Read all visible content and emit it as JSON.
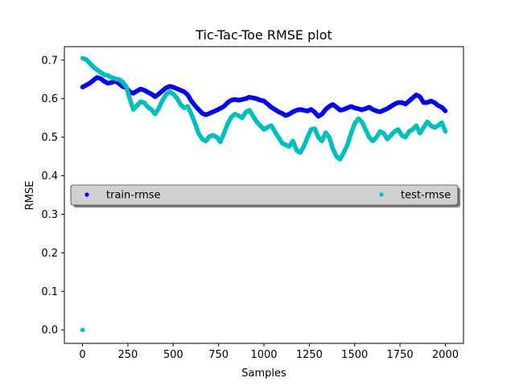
{
  "chart_data": {
    "type": "scatter",
    "title": "Tic-Tac-Toe RMSE plot",
    "xlabel": "Samples",
    "ylabel": "RMSE",
    "xlim": [
      -100,
      2100
    ],
    "ylim": [
      -0.035,
      0.735
    ],
    "xticks": [
      {
        "value": 0,
        "label": "0"
      },
      {
        "value": 250,
        "label": "250"
      },
      {
        "value": 500,
        "label": "500"
      },
      {
        "value": 750,
        "label": "750"
      },
      {
        "value": 1000,
        "label": "1000"
      },
      {
        "value": 1250,
        "label": "1250"
      },
      {
        "value": 1500,
        "label": "1500"
      },
      {
        "value": 1750,
        "label": "1750"
      },
      {
        "value": 2000,
        "label": "2000"
      }
    ],
    "yticks": [
      {
        "value": 0.0,
        "label": "0.0"
      },
      {
        "value": 0.1,
        "label": "0.1"
      },
      {
        "value": 0.2,
        "label": "0.2"
      },
      {
        "value": 0.3,
        "label": "0.3"
      },
      {
        "value": 0.4,
        "label": "0.4"
      },
      {
        "value": 0.5,
        "label": "0.5"
      },
      {
        "value": 0.6,
        "label": "0.6"
      },
      {
        "value": 0.7,
        "label": "0.7"
      }
    ],
    "grid": false,
    "legend": {
      "placement": "center-left",
      "style": "shadowed box",
      "columns": 2
    },
    "series": [
      {
        "name": "train-rmse",
        "color": "#0000ff",
        "x": [
          0,
          20,
          40,
          60,
          80,
          100,
          120,
          140,
          160,
          180,
          200,
          220,
          240,
          260,
          280,
          300,
          320,
          340,
          360,
          380,
          400,
          420,
          440,
          460,
          480,
          500,
          520,
          540,
          560,
          580,
          600,
          620,
          640,
          660,
          680,
          700,
          720,
          740,
          760,
          780,
          800,
          820,
          840,
          860,
          880,
          900,
          920,
          940,
          960,
          980,
          1000,
          1020,
          1040,
          1060,
          1080,
          1100,
          1120,
          1140,
          1160,
          1180,
          1200,
          1220,
          1240,
          1260,
          1280,
          1300,
          1320,
          1340,
          1360,
          1380,
          1400,
          1420,
          1440,
          1460,
          1480,
          1500,
          1520,
          1540,
          1560,
          1580,
          1600,
          1620,
          1640,
          1660,
          1680,
          1700,
          1720,
          1740,
          1760,
          1780,
          1800,
          1820,
          1840,
          1860,
          1880,
          1900,
          1920,
          1940,
          1960,
          1980,
          2000
        ],
        "y": [
          0.63,
          0.635,
          0.64,
          0.648,
          0.655,
          0.652,
          0.645,
          0.64,
          0.642,
          0.646,
          0.64,
          0.632,
          0.628,
          0.618,
          0.614,
          0.62,
          0.625,
          0.622,
          0.617,
          0.612,
          0.605,
          0.612,
          0.62,
          0.628,
          0.632,
          0.63,
          0.626,
          0.622,
          0.618,
          0.61,
          0.594,
          0.582,
          0.572,
          0.562,
          0.558,
          0.562,
          0.566,
          0.57,
          0.575,
          0.58,
          0.59,
          0.596,
          0.598,
          0.596,
          0.598,
          0.6,
          0.604,
          0.602,
          0.6,
          0.596,
          0.594,
          0.586,
          0.578,
          0.572,
          0.566,
          0.562,
          0.556,
          0.56,
          0.566,
          0.57,
          0.572,
          0.57,
          0.568,
          0.572,
          0.565,
          0.554,
          0.56,
          0.572,
          0.58,
          0.585,
          0.578,
          0.57,
          0.572,
          0.576,
          0.58,
          0.576,
          0.574,
          0.571,
          0.574,
          0.578,
          0.572,
          0.568,
          0.566,
          0.57,
          0.574,
          0.58,
          0.586,
          0.59,
          0.59,
          0.586,
          0.594,
          0.602,
          0.61,
          0.605,
          0.59,
          0.59,
          0.594,
          0.59,
          0.582,
          0.578,
          0.568
        ]
      },
      {
        "name": "test-rmse",
        "color": "#00bfbf",
        "x": [
          0,
          0,
          20,
          40,
          60,
          80,
          100,
          120,
          140,
          160,
          180,
          200,
          220,
          240,
          260,
          280,
          300,
          320,
          340,
          360,
          380,
          400,
          420,
          440,
          460,
          480,
          500,
          520,
          540,
          560,
          580,
          600,
          620,
          640,
          660,
          680,
          700,
          720,
          740,
          760,
          780,
          800,
          820,
          840,
          860,
          880,
          900,
          920,
          940,
          960,
          980,
          1000,
          1020,
          1040,
          1060,
          1080,
          1100,
          1120,
          1140,
          1160,
          1180,
          1200,
          1220,
          1240,
          1260,
          1280,
          1300,
          1320,
          1340,
          1360,
          1380,
          1400,
          1420,
          1440,
          1460,
          1480,
          1500,
          1520,
          1540,
          1560,
          1580,
          1600,
          1620,
          1640,
          1660,
          1680,
          1700,
          1720,
          1740,
          1760,
          1780,
          1800,
          1820,
          1840,
          1860,
          1880,
          1900,
          1920,
          1940,
          1960,
          1980,
          2000
        ],
        "y": [
          0.0,
          0.705,
          0.702,
          0.692,
          0.682,
          0.675,
          0.668,
          0.662,
          0.66,
          0.655,
          0.652,
          0.65,
          0.644,
          0.632,
          0.6,
          0.572,
          0.582,
          0.592,
          0.59,
          0.578,
          0.572,
          0.56,
          0.575,
          0.595,
          0.61,
          0.618,
          0.612,
          0.602,
          0.585,
          0.576,
          0.58,
          0.56,
          0.536,
          0.51,
          0.495,
          0.49,
          0.502,
          0.505,
          0.5,
          0.488,
          0.51,
          0.535,
          0.552,
          0.56,
          0.556,
          0.55,
          0.565,
          0.57,
          0.555,
          0.54,
          0.53,
          0.52,
          0.526,
          0.53,
          0.515,
          0.5,
          0.485,
          0.48,
          0.476,
          0.49,
          0.466,
          0.46,
          0.476,
          0.5,
          0.52,
          0.522,
          0.5,
          0.49,
          0.512,
          0.5,
          0.47,
          0.45,
          0.443,
          0.46,
          0.48,
          0.51,
          0.535,
          0.548,
          0.54,
          0.52,
          0.5,
          0.49,
          0.5,
          0.515,
          0.51,
          0.495,
          0.505,
          0.515,
          0.52,
          0.505,
          0.5,
          0.515,
          0.52,
          0.53,
          0.51,
          0.525,
          0.54,
          0.53,
          0.525,
          0.53,
          0.538,
          0.515
        ]
      }
    ]
  }
}
